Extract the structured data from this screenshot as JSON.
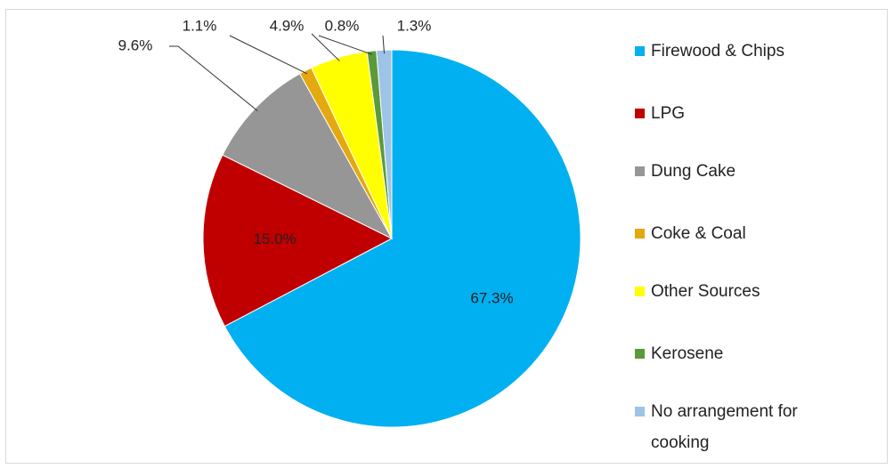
{
  "chart_data": {
    "type": "pie",
    "categories": [
      "Firewood & Chips",
      "LPG",
      "Dung Cake",
      "Coke & Coal",
      "Other Sources",
      "Kerosene",
      "No arrangement for cooking"
    ],
    "values": [
      67.3,
      15.0,
      9.6,
      1.1,
      4.9,
      0.8,
      1.3
    ],
    "value_labels": [
      "67.3%",
      "15.0%",
      "9.6%",
      "1.1%",
      "4.9%",
      "0.8%",
      "1.3%"
    ],
    "colors": [
      "#00b0f0",
      "#c00000",
      "#969696",
      "#e4a810",
      "#ffff00",
      "#5a9a3a",
      "#9dc3e6"
    ],
    "legend": "right"
  }
}
